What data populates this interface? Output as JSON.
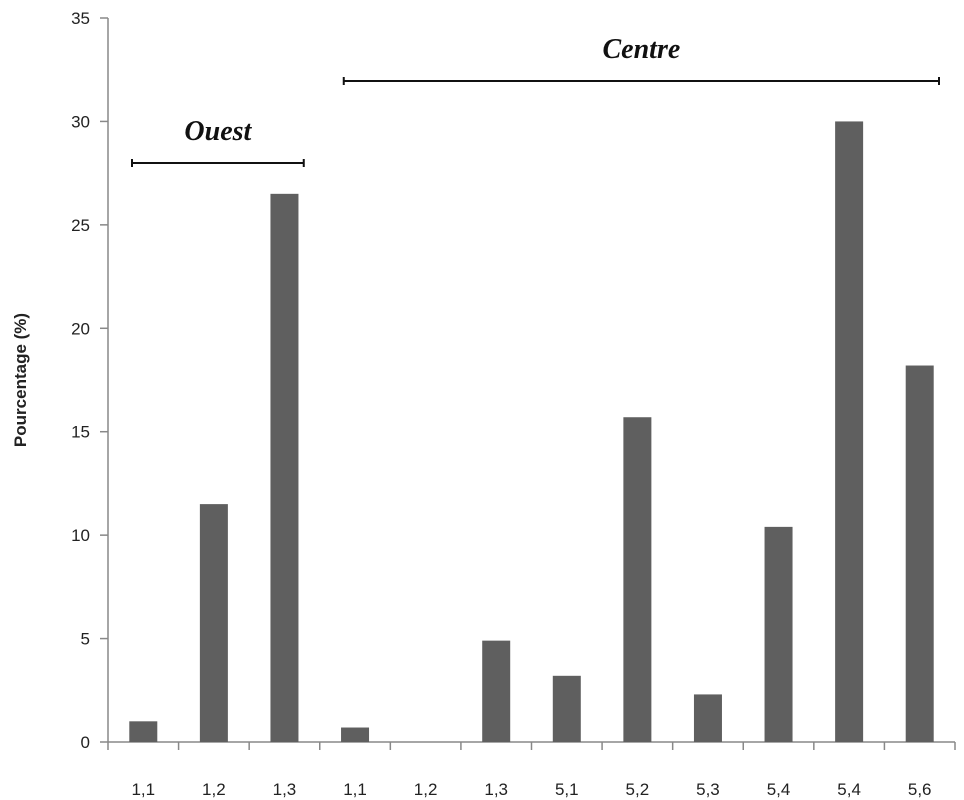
{
  "chart_data": {
    "type": "bar",
    "categories": [
      "1,1",
      "1,2",
      "1,3",
      "1,1",
      "1,2",
      "1,3",
      "5,1",
      "5,2",
      "5,3",
      "5,4",
      "5,4",
      "5,6"
    ],
    "values": [
      1.0,
      11.5,
      26.5,
      0.7,
      0.0,
      4.9,
      3.2,
      15.7,
      2.3,
      10.4,
      30.0,
      18.2
    ],
    "ylabel": "Pourcentage  (%)",
    "xlabel": "",
    "ylim": [
      0,
      35
    ],
    "yticks": [
      0,
      5,
      10,
      15,
      20,
      25,
      30,
      35
    ],
    "grid": false,
    "bar_color": "#5f5f5f",
    "groups": [
      {
        "label": "Ouest",
        "start_index": 0,
        "end_index": 2
      },
      {
        "label": "Centre",
        "start_index": 3,
        "end_index": 11
      }
    ]
  }
}
